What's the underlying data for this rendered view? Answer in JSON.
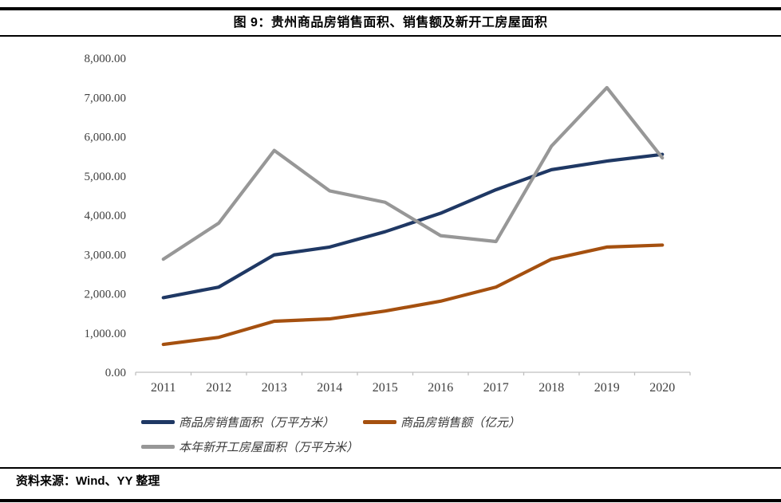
{
  "figure": {
    "title": "图 9：贵州商品房销售面积、销售额及新开工房屋面积",
    "source": "资料来源：Wind、YY 整理"
  },
  "chart_data": {
    "type": "line",
    "categories": [
      "2011",
      "2012",
      "2013",
      "2014",
      "2015",
      "2016",
      "2017",
      "2018",
      "2019",
      "2020"
    ],
    "series": [
      {
        "key": "sales-area",
        "name": "商品房销售面积（万平方米）",
        "color": "#1F3864",
        "values": [
          1900,
          2170,
          2990,
          3190,
          3580,
          4050,
          4650,
          5160,
          5380,
          5550
        ]
      },
      {
        "key": "sales-amount",
        "name": "商品房销售额（亿元）",
        "color": "#A5500F",
        "values": [
          710,
          890,
          1300,
          1360,
          1560,
          1810,
          2170,
          2880,
          3190,
          3240
        ]
      },
      {
        "key": "new-construction-area",
        "name": "本年新开工房屋面积（万平方米）",
        "color": "#979797",
        "values": [
          2880,
          3800,
          5650,
          4620,
          4330,
          3480,
          3330,
          5760,
          7250,
          5460
        ]
      }
    ],
    "title": "图 9：贵州商品房销售面积、销售额及新开工房屋面积",
    "xlabel": "",
    "ylabel": "",
    "ylim": [
      0,
      8000
    ],
    "ytick_step": 1000,
    "ytick_labels": [
      "0.00",
      "1,000.00",
      "2,000.00",
      "3,000.00",
      "4,000.00",
      "5,000.00",
      "6,000.00",
      "7,000.00",
      "8,000.00"
    ],
    "grid": false,
    "legend_position": "bottom",
    "legend_rows": [
      [
        0,
        1
      ],
      [
        2
      ]
    ]
  },
  "colors": {
    "axis": "#BFBFBF",
    "tick_label": "#404040",
    "rule": "#000000"
  }
}
